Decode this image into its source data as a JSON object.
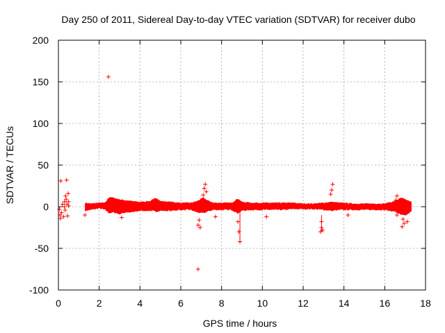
{
  "chart_data": {
    "type": "scatter",
    "title": "Day 250 of 2011, Sidereal Day-to-day VTEC variation (SDTVAR) for receiver dubo",
    "xlabel": "GPS time / hours",
    "ylabel": "SDTVAR / TECUs",
    "xlim": [
      0,
      18
    ],
    "ylim": [
      -100,
      200
    ],
    "xticks": [
      0,
      2,
      4,
      6,
      8,
      10,
      12,
      14,
      16,
      18
    ],
    "yticks": [
      -100,
      -50,
      0,
      50,
      100,
      150,
      200
    ],
    "xtick_labels": [
      "0",
      "2",
      "4",
      "6",
      "8",
      "10",
      "12",
      "14",
      "16",
      "18"
    ],
    "ytick_labels": [
      "-100",
      "-50",
      "0",
      "50",
      "100",
      "150",
      "200"
    ],
    "grid": true,
    "marker": "+",
    "color": "#ff0000",
    "series": [
      {
        "name": "SDTVAR",
        "band": [
          [
            1.3,
            -3,
            3
          ],
          [
            1.6,
            -2,
            2
          ],
          [
            2.0,
            0,
            3
          ],
          [
            2.3,
            -2,
            3
          ],
          [
            2.5,
            -6,
            10
          ],
          [
            2.7,
            -5,
            9
          ],
          [
            3.0,
            -7,
            7
          ],
          [
            3.3,
            -5,
            6
          ],
          [
            3.6,
            -5,
            5
          ],
          [
            4.0,
            -3,
            4
          ],
          [
            4.5,
            -3,
            5
          ],
          [
            4.8,
            -4,
            9
          ],
          [
            5.0,
            -3,
            5
          ],
          [
            5.5,
            -3,
            4
          ],
          [
            6.0,
            -2,
            3
          ],
          [
            6.5,
            -2,
            3
          ],
          [
            6.8,
            -5,
            5
          ],
          [
            7.1,
            -6,
            9
          ],
          [
            7.3,
            -4,
            6
          ],
          [
            7.6,
            -2,
            3
          ],
          [
            8.0,
            -2,
            3
          ],
          [
            8.5,
            -2,
            3
          ],
          [
            8.8,
            -6,
            8
          ],
          [
            9.0,
            -3,
            4
          ],
          [
            9.5,
            -2,
            3
          ],
          [
            10.0,
            -2,
            3
          ],
          [
            10.5,
            -2,
            3
          ],
          [
            11.0,
            -2,
            3
          ],
          [
            11.5,
            -1,
            3
          ],
          [
            12.0,
            -1,
            2
          ],
          [
            12.5,
            -1,
            2
          ],
          [
            13.0,
            -2,
            3
          ],
          [
            13.4,
            -3,
            4
          ],
          [
            13.8,
            -2,
            3
          ],
          [
            14.0,
            -2,
            3
          ],
          [
            14.5,
            -2,
            2
          ],
          [
            15.0,
            -2,
            2
          ],
          [
            15.5,
            -2,
            2
          ],
          [
            16.0,
            -2,
            2
          ],
          [
            16.5,
            -4,
            5
          ],
          [
            16.8,
            -8,
            9
          ],
          [
            17.0,
            -9,
            7
          ],
          [
            17.3,
            -4,
            4
          ]
        ],
        "points": [
          [
            2.45,
            156
          ],
          [
            6.85,
            -75
          ],
          [
            0.05,
            -3
          ],
          [
            0.08,
            -10
          ],
          [
            0.1,
            -14
          ],
          [
            0.12,
            31
          ],
          [
            0.3,
            6
          ],
          [
            0.35,
            13
          ],
          [
            0.38,
            9
          ],
          [
            0.4,
            32
          ],
          [
            0.42,
            3
          ],
          [
            0.45,
            -11
          ],
          [
            0.48,
            16
          ],
          [
            0.5,
            6
          ],
          [
            0.25,
            -12
          ],
          [
            0.3,
            0
          ],
          [
            0.33,
            -4
          ],
          [
            0.2,
            3
          ],
          [
            0.5,
            1
          ],
          [
            7.2,
            27
          ],
          [
            7.15,
            22
          ],
          [
            7.25,
            18
          ],
          [
            7.1,
            14
          ],
          [
            6.85,
            -22
          ],
          [
            6.9,
            -16
          ],
          [
            6.95,
            -25
          ],
          [
            7.7,
            -12
          ],
          [
            8.85,
            -30
          ],
          [
            8.9,
            -42
          ],
          [
            8.8,
            -18
          ],
          [
            12.9,
            -18
          ],
          [
            12.95,
            -28
          ],
          [
            12.85,
            -30
          ],
          [
            12.9,
            -25
          ],
          [
            13.35,
            15
          ],
          [
            13.4,
            20
          ],
          [
            13.45,
            27
          ],
          [
            14.2,
            -10
          ],
          [
            10.2,
            -12
          ],
          [
            3.1,
            -13
          ],
          [
            16.6,
            13
          ],
          [
            16.55,
            8
          ],
          [
            16.6,
            -10
          ],
          [
            16.9,
            -15
          ],
          [
            16.85,
            -24
          ],
          [
            16.95,
            -20
          ],
          [
            17.1,
            -18
          ],
          [
            17.2,
            -5
          ],
          [
            0.15,
            -7
          ],
          [
            1.3,
            -10
          ]
        ],
        "bars": [
          [
            8.9,
            -42,
            5
          ],
          [
            12.9,
            -30,
            -10
          ]
        ]
      }
    ]
  }
}
